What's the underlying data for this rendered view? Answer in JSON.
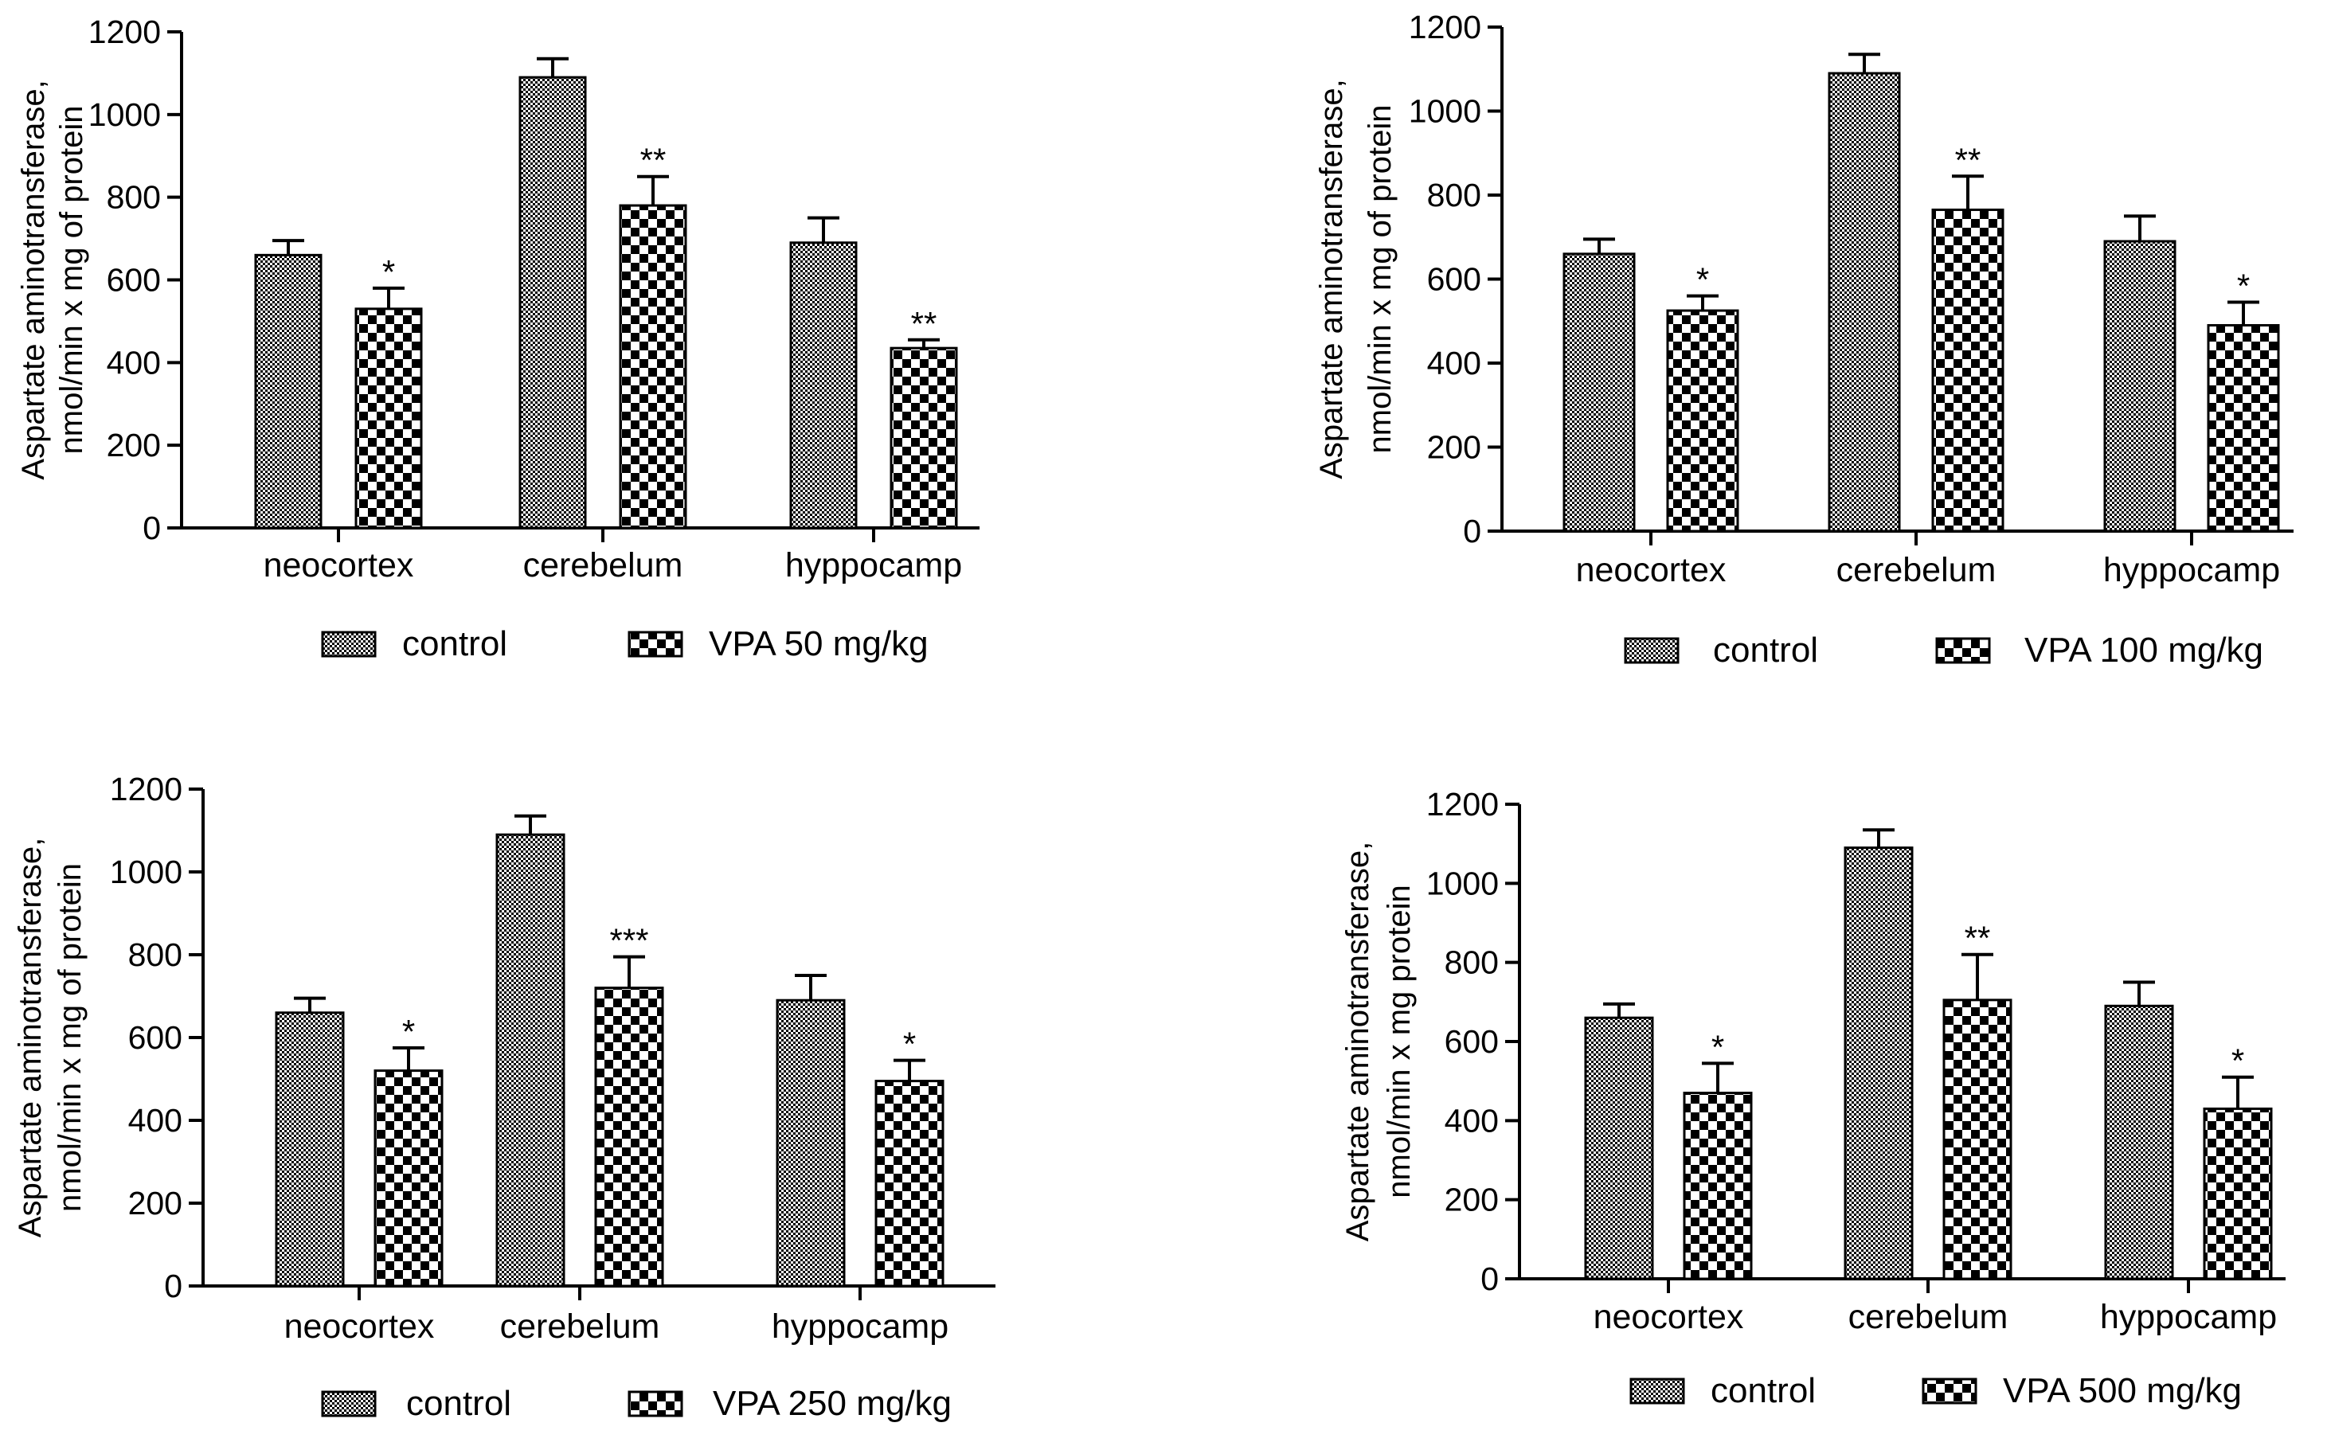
{
  "chart_data": [
    {
      "type": "bar",
      "title": "",
      "ylabel_line1": "Aspartate aminotransferase,",
      "ylabel_line2": "nmol/min x mg of protein",
      "xlabel": "",
      "categories": [
        "neocortex",
        "cerebelum",
        "hyppocamp"
      ],
      "ylim": [
        0,
        1200
      ],
      "yticks": [
        0,
        200,
        400,
        600,
        800,
        1000,
        1200
      ],
      "series": [
        {
          "name": "control",
          "pattern": "fine-check",
          "values": [
            660,
            1090,
            690
          ],
          "errors": [
            35,
            45,
            60
          ],
          "annotations": [
            "",
            "",
            ""
          ]
        },
        {
          "name": "VPA 50 mg/kg",
          "pattern": "coarse-check",
          "values": [
            530,
            780,
            435
          ],
          "errors": [
            50,
            70,
            20
          ],
          "annotations": [
            "*",
            "**",
            "**"
          ]
        }
      ],
      "legend": [
        "control",
        "VPA 50 mg/kg"
      ]
    },
    {
      "type": "bar",
      "title": "",
      "ylabel_line1": "Aspartate aminotransferase,",
      "ylabel_line2": "nmol/min x mg of protein",
      "xlabel": "",
      "categories": [
        "neocortex",
        "cerebelum",
        "hyppocamp"
      ],
      "ylim": [
        0,
        1200
      ],
      "yticks": [
        0,
        200,
        400,
        600,
        800,
        1000,
        1200
      ],
      "series": [
        {
          "name": "control",
          "pattern": "fine-check",
          "values": [
            660,
            1090,
            690
          ],
          "errors": [
            35,
            45,
            60
          ],
          "annotations": [
            "",
            "",
            ""
          ]
        },
        {
          "name": "VPA 100 mg/kg",
          "pattern": "coarse-check",
          "values": [
            525,
            765,
            490
          ],
          "errors": [
            35,
            80,
            55
          ],
          "annotations": [
            "*",
            "**",
            "*"
          ]
        }
      ],
      "legend": [
        "control",
        "VPA 100 mg/kg"
      ]
    },
    {
      "type": "bar",
      "title": "",
      "ylabel_line1": "Aspartate aminotransferase,",
      "ylabel_line2": "nmol/min x mg of protein",
      "xlabel": "",
      "categories": [
        "neocortex",
        "cerebelum",
        "hyppocamp"
      ],
      "ylim": [
        0,
        1200
      ],
      "yticks": [
        0,
        200,
        400,
        600,
        800,
        1000,
        1200
      ],
      "series": [
        {
          "name": "control",
          "pattern": "fine-check",
          "values": [
            660,
            1090,
            690
          ],
          "errors": [
            35,
            45,
            60
          ],
          "annotations": [
            "",
            "",
            ""
          ]
        },
        {
          "name": "VPA 250 mg/kg",
          "pattern": "coarse-check",
          "values": [
            520,
            720,
            495
          ],
          "errors": [
            55,
            75,
            50
          ],
          "annotations": [
            "*",
            "***",
            "*"
          ]
        }
      ],
      "legend": [
        "control",
        "VPA 250 mg/kg"
      ]
    },
    {
      "type": "bar",
      "title": "",
      "ylabel_line1": "Aspartate aminotransferase,",
      "ylabel_line2": "nmol/min x mg protein",
      "xlabel": "",
      "categories": [
        "neocortex",
        "cerebelum",
        "hyppocamp"
      ],
      "ylim": [
        0,
        1200
      ],
      "yticks": [
        0,
        200,
        400,
        600,
        800,
        1000,
        1200
      ],
      "series": [
        {
          "name": "control",
          "pattern": "fine-check",
          "values": [
            660,
            1090,
            690
          ],
          "errors": [
            35,
            45,
            60
          ],
          "annotations": [
            "",
            "",
            ""
          ]
        },
        {
          "name": "VPA 500 mg/kg",
          "pattern": "coarse-check",
          "values": [
            470,
            705,
            430
          ],
          "errors": [
            75,
            115,
            80
          ],
          "annotations": [
            "*",
            "**",
            "*"
          ]
        }
      ],
      "legend": [
        "control",
        "VPA 500 mg/kg"
      ]
    }
  ]
}
